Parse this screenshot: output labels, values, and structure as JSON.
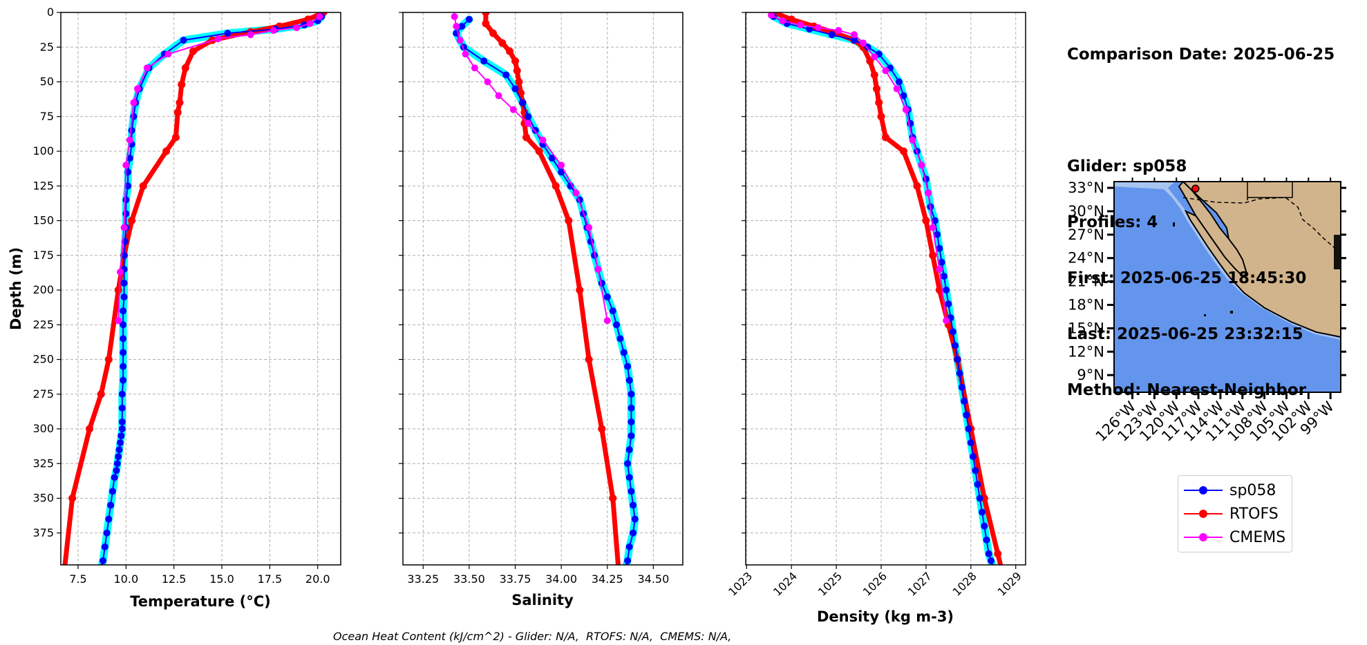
{
  "info": {
    "comparison_date": "Comparison Date: 2025-06-25",
    "glider": "Glider: sp058",
    "profiles": "Profiles: 4",
    "first": "First: 2025-06-25 18:45:30",
    "last": "Last: 2025-06-25 23:32:15",
    "method": "Method: Nearest-Neighbor"
  },
  "footer": "Ocean Heat Content (kJ/cm^2) - Glider: N/A,  RTOFS: N/A,  CMEMS: N/A,",
  "legend": [
    {
      "name": "sp058",
      "color": "#0000ff"
    },
    {
      "name": "RTOFS",
      "color": "#ff0000"
    },
    {
      "name": "CMEMS",
      "color": "#ff00ff"
    }
  ],
  "colors": {
    "glider": "#0000ff",
    "glider_individual": "#00ffff",
    "rtofs": "#ff0000",
    "cmems": "#ff00ff",
    "ocean": "#6495ed",
    "land": "#d2b48c"
  },
  "chart_data": [
    {
      "type": "line",
      "xlabel": "Temperature (°C)",
      "ylabel": "Depth (m)",
      "xlim": [
        6.6,
        21.2
      ],
      "ylim": [
        398,
        0
      ],
      "xticks": [
        "7.5",
        "10.0",
        "12.5",
        "15.0",
        "17.5",
        "20.0"
      ],
      "xtick_values": [
        7.5,
        10.0,
        12.5,
        15.0,
        17.5,
        20.0
      ],
      "yticks": [
        "0",
        "25",
        "50",
        "75",
        "100",
        "125",
        "150",
        "175",
        "200",
        "225",
        "250",
        "275",
        "300",
        "325",
        "350",
        "375"
      ],
      "ytick_values": [
        0,
        25,
        50,
        75,
        100,
        125,
        150,
        175,
        200,
        225,
        250,
        275,
        300,
        325,
        350,
        375
      ],
      "grid": true,
      "series": [
        {
          "name": "sp058",
          "color": "#0000ff",
          "lw": 2,
          "marker": true,
          "x": [
            20.2,
            20.0,
            19.3,
            17.8,
            15.3,
            13.0,
            12.0,
            11.2,
            10.7,
            10.5,
            10.4,
            10.3,
            10.3,
            10.2,
            10.1,
            10.1,
            10.0,
            10.0,
            10.0,
            9.95,
            9.9,
            9.9,
            9.9,
            9.9,
            9.85,
            9.85,
            9.85,
            9.85,
            9.85,
            9.85,
            9.8,
            9.8,
            9.8,
            9.8,
            9.75,
            9.7,
            9.65,
            9.6,
            9.55,
            9.5,
            9.4,
            9.3,
            9.2,
            9.1,
            9.0,
            8.9,
            8.8,
            8.7,
            8.6
          ],
          "y": [
            3,
            6,
            9,
            12,
            15,
            20,
            30,
            40,
            55,
            65,
            75,
            85,
            95,
            105,
            115,
            125,
            135,
            145,
            155,
            165,
            175,
            185,
            195,
            205,
            215,
            225,
            235,
            245,
            255,
            265,
            275,
            285,
            295,
            300,
            305,
            310,
            315,
            320,
            325,
            330,
            335,
            345,
            355,
            365,
            375,
            385,
            395,
            400,
            405
          ]
        },
        {
          "name": "RTOFS",
          "color": "#ff0000",
          "lw": 7,
          "marker": true,
          "x": [
            20.3,
            19.5,
            18.0,
            16.5,
            14.5,
            13.5,
            13.1,
            12.9,
            12.8,
            12.7,
            12.6,
            12.1,
            10.9,
            10.3,
            9.9,
            9.6,
            9.1,
            8.7,
            8.1,
            7.2,
            6.8
          ],
          "y": [
            0,
            5,
            10,
            14,
            20,
            28,
            40,
            52,
            65,
            72,
            90,
            100,
            125,
            150,
            175,
            200,
            250,
            275,
            300,
            350,
            400
          ]
        },
        {
          "name": "CMEMS",
          "color": "#ff00ff",
          "lw": 2,
          "marker": true,
          "x": [
            20.1,
            19.6,
            18.9,
            17.7,
            16.5,
            14.8,
            12.2,
            11.1,
            10.6,
            10.4,
            10.2,
            10.0,
            9.9,
            9.7,
            9.6
          ],
          "y": [
            3,
            8,
            11,
            13,
            16,
            19,
            30,
            40,
            55,
            65,
            92,
            110,
            155,
            187,
            222
          ]
        }
      ]
    },
    {
      "type": "line",
      "xlabel": "Salinity",
      "xlim": [
        33.14,
        34.66
      ],
      "ylim": [
        398,
        0
      ],
      "xticks": [
        "33.25",
        "33.50",
        "33.75",
        "34.00",
        "34.25",
        "34.50"
      ],
      "xtick_values": [
        33.25,
        33.5,
        33.75,
        34.0,
        34.25,
        34.5
      ],
      "grid": true,
      "series": [
        {
          "name": "sp058",
          "color": "#0000ff",
          "lw": 2,
          "marker": true,
          "x": [
            33.5,
            33.46,
            33.43,
            33.47,
            33.58,
            33.7,
            33.75,
            33.79,
            33.82,
            33.86,
            33.9,
            33.95,
            34.0,
            34.05,
            34.1,
            34.12,
            34.14,
            34.16,
            34.18,
            34.2,
            34.22,
            34.25,
            34.28,
            34.3,
            34.32,
            34.34,
            34.36,
            34.37,
            34.38,
            34.38,
            34.38,
            34.38,
            34.37,
            34.36,
            34.37,
            34.38,
            34.39,
            34.4,
            34.39,
            34.37,
            34.36,
            34.35,
            34.34,
            34.33,
            34.33
          ],
          "y": [
            5,
            10,
            15,
            25,
            35,
            45,
            55,
            65,
            75,
            85,
            95,
            105,
            115,
            125,
            135,
            145,
            155,
            165,
            175,
            185,
            195,
            205,
            215,
            225,
            235,
            245,
            255,
            265,
            275,
            285,
            295,
            305,
            315,
            325,
            335,
            345,
            355,
            365,
            375,
            385,
            395,
            400,
            405,
            410,
            415
          ]
        },
        {
          "name": "RTOFS",
          "color": "#ff0000",
          "lw": 7,
          "marker": true,
          "x": [
            33.59,
            33.59,
            33.63,
            33.68,
            33.72,
            33.75,
            33.76,
            33.77,
            33.78,
            33.79,
            33.8,
            33.8,
            33.81,
            33.88,
            33.97,
            34.04,
            34.1,
            34.15,
            34.22,
            34.28,
            34.31
          ],
          "y": [
            0,
            8,
            15,
            22,
            28,
            35,
            42,
            50,
            58,
            65,
            72,
            80,
            90,
            100,
            125,
            150,
            200,
            250,
            300,
            350,
            400
          ]
        },
        {
          "name": "CMEMS",
          "color": "#ff00ff",
          "lw": 2,
          "marker": true,
          "x": [
            33.42,
            33.43,
            33.45,
            33.48,
            33.53,
            33.6,
            33.66,
            33.74,
            33.82,
            33.9,
            34.0,
            34.08,
            34.15,
            34.2,
            34.25
          ],
          "y": [
            3,
            10,
            20,
            30,
            40,
            50,
            60,
            70,
            80,
            92,
            110,
            130,
            155,
            185,
            222
          ]
        }
      ]
    },
    {
      "type": "line",
      "xlabel": "Density (kg m-3)",
      "xlim": [
        1022.98,
        1029.22
      ],
      "ylim": [
        398,
        0
      ],
      "xticks": [
        "1023",
        "1024",
        "1025",
        "1026",
        "1027",
        "1028",
        "1029"
      ],
      "xtick_values": [
        1023,
        1024,
        1025,
        1026,
        1027,
        1028,
        1029
      ],
      "grid": true,
      "series": [
        {
          "name": "sp058",
          "color": "#0000ff",
          "lw": 2,
          "marker": true,
          "x": [
            1023.6,
            1023.9,
            1024.4,
            1024.9,
            1025.4,
            1025.7,
            1025.95,
            1026.2,
            1026.4,
            1026.5,
            1026.6,
            1026.65,
            1026.7,
            1026.8,
            1026.9,
            1027.0,
            1027.05,
            1027.1,
            1027.2,
            1027.25,
            1027.3,
            1027.35,
            1027.4,
            1027.45,
            1027.5,
            1027.55,
            1027.6,
            1027.65,
            1027.7,
            1027.75,
            1027.8,
            1027.85,
            1027.9,
            1027.95,
            1028.0,
            1028.05,
            1028.1,
            1028.15,
            1028.2,
            1028.25,
            1028.3,
            1028.35,
            1028.4,
            1028.45,
            1028.5,
            1028.55
          ],
          "y": [
            3,
            8,
            12,
            16,
            20,
            25,
            30,
            40,
            50,
            60,
            70,
            80,
            90,
            100,
            110,
            120,
            130,
            140,
            150,
            160,
            170,
            180,
            190,
            200,
            210,
            220,
            230,
            240,
            250,
            260,
            270,
            280,
            290,
            300,
            310,
            320,
            330,
            340,
            350,
            360,
            370,
            380,
            390,
            395,
            400,
            405
          ]
        },
        {
          "name": "RTOFS",
          "color": "#ff0000",
          "lw": 7,
          "marker": true,
          "x": [
            1023.6,
            1024.0,
            1024.5,
            1025.0,
            1025.4,
            1025.6,
            1025.75,
            1025.85,
            1025.9,
            1025.95,
            1026.0,
            1026.1,
            1026.5,
            1026.8,
            1027.0,
            1027.15,
            1027.3,
            1027.5,
            1027.7,
            1028.0,
            1028.3,
            1028.6,
            1028.75
          ],
          "y": [
            0,
            5,
            10,
            15,
            20,
            25,
            35,
            45,
            55,
            65,
            75,
            90,
            100,
            125,
            150,
            175,
            200,
            225,
            250,
            300,
            350,
            390,
            410
          ]
        },
        {
          "name": "CMEMS",
          "color": "#ff00ff",
          "lw": 2,
          "marker": true,
          "x": [
            1023.55,
            1023.8,
            1024.2,
            1024.6,
            1025.05,
            1025.4,
            1025.6,
            1025.85,
            1026.1,
            1026.35,
            1026.55,
            1026.7,
            1026.9,
            1027.05,
            1027.15,
            1027.3,
            1027.45
          ],
          "y": [
            2,
            6,
            9,
            11,
            13,
            16,
            22,
            32,
            42,
            55,
            70,
            92,
            110,
            130,
            155,
            185,
            222
          ]
        }
      ]
    }
  ],
  "map": {
    "lon_labels": [
      "126°W",
      "123°W",
      "120°W",
      "117°W",
      "114°W",
      "111°W",
      "108°W",
      "105°W",
      "102°W",
      "99°W"
    ],
    "lat_labels": [
      "33°N",
      "30°N",
      "27°N",
      "24°N",
      "21°N",
      "18°N",
      "15°N",
      "12°N",
      "9°N"
    ],
    "glider_position": {
      "lon": -117.4,
      "lat": 32.9
    }
  }
}
